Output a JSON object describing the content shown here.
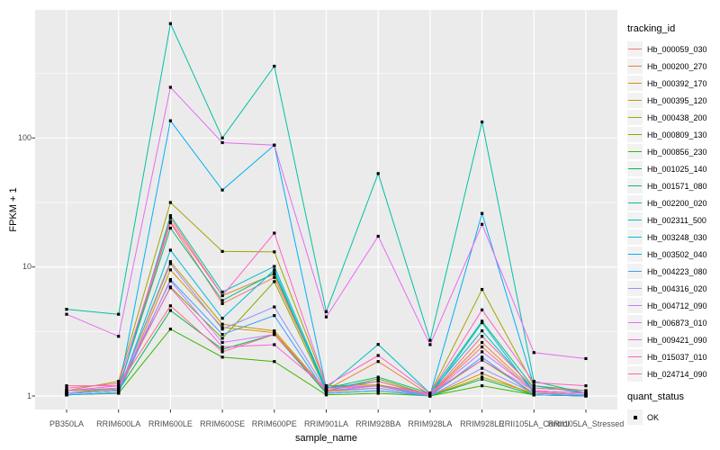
{
  "figure": {
    "xlabel": "sample_name",
    "ylabel": "FPKM + 1"
  },
  "legend": {
    "tracking_title": "tracking_id",
    "quant_title": "quant_status",
    "quant_items": [
      {
        "label": "OK",
        "symbol": "black-square"
      }
    ]
  },
  "colors": {
    "panel_background": "#EBEBEB",
    "grid": "#FFFFFF",
    "tick_text": "#4D4D4D",
    "tick_mark": "#333333",
    "point": "#000000",
    "legend_key_background": "#F2F2F2"
  },
  "chart_data": {
    "type": "line",
    "title": "",
    "xlabel": "sample_name",
    "ylabel": "FPKM + 1",
    "y_scale": "log10",
    "y_ticks": [
      1,
      10,
      100
    ],
    "y_minor_ticks": [
      3.162,
      31.62,
      316.2
    ],
    "ylim": [
      0.79,
      985
    ],
    "grid": "on",
    "legend_position": "right",
    "point_marker": "filled-black-square",
    "categories": [
      "PB350LA",
      "RRIM600LA",
      "RRIM600LE",
      "RRIM600SE",
      "RRIM600PE",
      "RRIM901LA",
      "RRIM928BA",
      "RRIM928LA",
      "RRIM928LE",
      "RRII105LA_Control",
      "RRII105LA_Stressed"
    ],
    "series": [
      {
        "name": "Hb_000059_030",
        "color": "#F8766D",
        "values": [
          1.1,
          1.12,
          22,
          5.2,
          8.3,
          1.15,
          1.2,
          1.02,
          2.4,
          1.08,
          1.02
        ]
      },
      {
        "name": "Hb_000200_270",
        "color": "#EA8331",
        "values": [
          1.05,
          1.1,
          24,
          6.0,
          8.8,
          1.12,
          1.85,
          1.02,
          2.6,
          1.1,
          1.05
        ]
      },
      {
        "name": "Hb_000392_170",
        "color": "#D89000",
        "values": [
          1.02,
          1.06,
          9.5,
          3.4,
          3.1,
          1.08,
          1.15,
          1.0,
          1.5,
          1.02,
          1.0
        ]
      },
      {
        "name": "Hb_000395_120",
        "color": "#C09B00",
        "values": [
          1.05,
          1.1,
          11.0,
          3.6,
          3.2,
          1.1,
          1.2,
          1.0,
          1.4,
          1.05,
          1.02
        ]
      },
      {
        "name": "Hb_000438_200",
        "color": "#A3A500",
        "values": [
          1.1,
          1.3,
          31.6,
          13.2,
          13.1,
          1.2,
          1.22,
          1.05,
          6.7,
          1.2,
          1.1
        ]
      },
      {
        "name": "Hb_000809_130",
        "color": "#7CAE00",
        "values": [
          1.05,
          1.15,
          7.0,
          2.8,
          7.7,
          1.1,
          1.36,
          1.02,
          1.9,
          1.05,
          1.02
        ]
      },
      {
        "name": "Hb_000856_230",
        "color": "#39B600",
        "values": [
          1.02,
          1.05,
          3.3,
          2.0,
          1.85,
          1.02,
          1.05,
          1.0,
          1.2,
          1.02,
          1.0
        ]
      },
      {
        "name": "Hb_001025_140",
        "color": "#00BB4E",
        "values": [
          1.05,
          1.1,
          4.6,
          2.3,
          3.0,
          1.05,
          1.1,
          1.0,
          1.35,
          1.02,
          1.0
        ]
      },
      {
        "name": "Hb_001571_080",
        "color": "#00BF7D",
        "values": [
          1.1,
          1.15,
          20,
          5.5,
          9.0,
          1.15,
          1.4,
          1.05,
          3.8,
          1.15,
          1.1
        ]
      },
      {
        "name": "Hb_002200_020",
        "color": "#00C1A3",
        "values": [
          4.7,
          4.3,
          770,
          100,
          360,
          4.5,
          53,
          2.7,
          133,
          1.3,
          1.05
        ]
      },
      {
        "name": "Hb_002311_500",
        "color": "#00BFC4",
        "values": [
          1.05,
          1.1,
          25,
          6.4,
          10.1,
          1.15,
          2.51,
          1.05,
          3.2,
          1.1,
          1.05
        ]
      },
      {
        "name": "Hb_003248_030",
        "color": "#00BAE0",
        "values": [
          1.02,
          1.06,
          13.5,
          4.0,
          9.5,
          1.1,
          1.2,
          1.0,
          3.7,
          1.05,
          1.02
        ]
      },
      {
        "name": "Hb_003502_040",
        "color": "#00B0F6",
        "values": [
          1.05,
          1.1,
          136,
          39.5,
          88,
          1.15,
          1.3,
          1.02,
          26,
          1.2,
          1.05
        ]
      },
      {
        "name": "Hb_004223_080",
        "color": "#35A2FF",
        "values": [
          1.02,
          1.06,
          8.0,
          3.0,
          4.2,
          1.05,
          1.1,
          1.0,
          2.0,
          1.02,
          1.0
        ]
      },
      {
        "name": "Hb_004316_020",
        "color": "#9590FF",
        "values": [
          1.05,
          1.1,
          10.6,
          3.3,
          4.9,
          1.1,
          1.15,
          1.0,
          1.64,
          1.05,
          1.02
        ]
      },
      {
        "name": "Hb_004712_090",
        "color": "#C77CFF",
        "values": [
          1.1,
          1.15,
          7.8,
          2.6,
          3.0,
          1.1,
          1.2,
          1.02,
          2.2,
          1.1,
          1.05
        ]
      },
      {
        "name": "Hb_006873_010",
        "color": "#E76BF3",
        "values": [
          4.3,
          2.9,
          247,
          92,
          88,
          4.1,
          17.3,
          2.5,
          21.4,
          2.17,
          1.95
        ]
      },
      {
        "name": "Hb_009421_090",
        "color": "#FA62DB",
        "values": [
          1.1,
          1.2,
          6.9,
          2.4,
          2.5,
          1.15,
          1.2,
          1.05,
          1.9,
          1.1,
          1.05
        ]
      },
      {
        "name": "Hb_015037_010",
        "color": "#FF61C9",
        "values": [
          1.15,
          1.25,
          22.5,
          6.0,
          18.3,
          1.2,
          2.06,
          1.05,
          4.65,
          1.27,
          1.2
        ]
      },
      {
        "name": "Hb_024714_090",
        "color": "#FF6A98",
        "values": [
          1.2,
          1.2,
          5.0,
          2.2,
          3.0,
          1.1,
          1.3,
          1.02,
          2.9,
          1.15,
          1.1
        ]
      }
    ]
  }
}
